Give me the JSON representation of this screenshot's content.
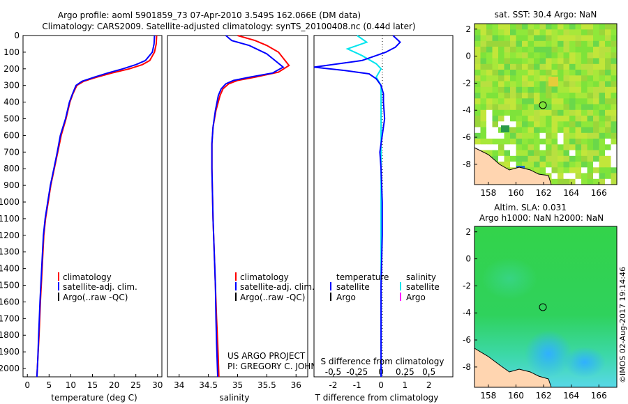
{
  "header": {
    "line1": "Argo profile: aoml 5901859_73 07-Apr-2010 3.549S 162.066E (DM data)",
    "line2": "Climatology: CARS2009. Satellite-adjusted climatology: synTS_20100408.nc (0.44d later)"
  },
  "colors": {
    "climatology": "#ff0000",
    "satellite": "#0000ff",
    "argo": "#000000",
    "sal_satellite": "#00e5ee",
    "sal_argo": "#ff00ff"
  },
  "chart_data": [
    {
      "type": "line",
      "id": "temperature",
      "xlabel": "temperature (deg C)",
      "xlim": [
        -1,
        31
      ],
      "xticks": [
        "0",
        "5",
        "10",
        "15",
        "20",
        "25",
        "30"
      ],
      "ylim": [
        0,
        2050
      ],
      "yticks": [
        "0",
        "100",
        "200",
        "300",
        "400",
        "500",
        "600",
        "700",
        "800",
        "900",
        "1000",
        "1100",
        "1200",
        "1300",
        "1400",
        "1500",
        "1600",
        "1700",
        "1800",
        "1900",
        "2000"
      ],
      "legend": [
        "climatology",
        "satellite-adj. clim.",
        "Argo(..raw -QC)"
      ],
      "series": [
        {
          "name": "climatology",
          "x": [
            29.8,
            29.7,
            29.3,
            28.2,
            26.5,
            23.5,
            19.5,
            16.0,
            13.0,
            11.4,
            10.5,
            9.8,
            8.9,
            7.8,
            7.0,
            6.2,
            5.4,
            4.8,
            4.2,
            3.8,
            3.4,
            3.0,
            2.7,
            2.4,
            2.2
          ],
          "y": [
            0,
            50,
            100,
            150,
            175,
            200,
            225,
            250,
            275,
            300,
            350,
            400,
            500,
            600,
            700,
            800,
            900,
            1000,
            1100,
            1200,
            1400,
            1600,
            1800,
            1950,
            2050
          ]
        },
        {
          "name": "satellite-adj. clim.",
          "x": [
            29.3,
            29.2,
            28.8,
            27.2,
            25.0,
            22.0,
            18.5,
            15.4,
            12.6,
            11.2,
            10.4,
            9.7,
            8.8,
            7.6,
            6.9,
            6.1,
            5.3,
            4.7,
            4.1,
            3.7,
            3.3,
            2.9,
            2.6,
            2.4,
            2.2
          ],
          "y": [
            0,
            50,
            100,
            150,
            175,
            200,
            225,
            250,
            275,
            300,
            350,
            400,
            500,
            600,
            700,
            800,
            900,
            1000,
            1100,
            1200,
            1400,
            1600,
            1800,
            1950,
            2050
          ]
        }
      ]
    },
    {
      "type": "line",
      "id": "salinity",
      "xlabel": "salinity",
      "xlim": [
        33.8,
        36.2
      ],
      "xticks": [
        "34",
        "34.5",
        "35",
        "35.5",
        "36"
      ],
      "ylim": [
        0,
        2050
      ],
      "legend": [
        "climatology",
        "satellite-adj. clim.",
        "Argo(..raw -QC)"
      ],
      "series": [
        {
          "name": "climatology",
          "x": [
            35.0,
            35.3,
            35.5,
            35.7,
            35.88,
            35.7,
            35.3,
            35.0,
            34.85,
            34.75,
            34.7,
            34.63,
            34.58,
            34.56,
            34.56,
            34.57,
            34.58,
            34.6,
            34.62,
            34.64,
            34.66,
            34.67,
            34.68
          ],
          "y": [
            0,
            30,
            60,
            100,
            180,
            220,
            250,
            270,
            290,
            320,
            360,
            450,
            550,
            650,
            800,
            950,
            1100,
            1300,
            1500,
            1700,
            1850,
            1950,
            2050
          ]
        },
        {
          "name": "satellite-adj. clim.",
          "x": [
            34.8,
            34.9,
            35.2,
            35.5,
            35.78,
            35.6,
            35.2,
            34.93,
            34.8,
            34.72,
            34.67,
            34.62,
            34.58,
            34.56,
            34.56,
            34.57,
            34.58,
            34.6,
            34.62,
            34.63,
            34.64,
            34.65,
            34.66
          ],
          "y": [
            0,
            30,
            60,
            110,
            190,
            225,
            250,
            270,
            290,
            320,
            360,
            450,
            550,
            650,
            800,
            950,
            1100,
            1300,
            1500,
            1700,
            1850,
            1950,
            2050
          ]
        }
      ]
    },
    {
      "type": "line",
      "id": "difference",
      "xlabel": "T difference from climatology",
      "xlabel_top": "S difference from climatology",
      "xlim": [
        -2.8,
        3.0
      ],
      "xticks": [
        "-2",
        "-1",
        "0",
        "1",
        "2"
      ],
      "xticks_top": [
        "-0.5",
        "-0.25",
        "0",
        "0.25",
        "0.5"
      ],
      "ylim": [
        0,
        2050
      ],
      "legend_temperature": [
        "temperature",
        "satellite",
        "Argo"
      ],
      "legend_salinity": [
        "salinity",
        "satellite",
        "Argo"
      ],
      "series": [
        {
          "name": "temperature satellite",
          "x": [
            0.5,
            0.8,
            0.6,
            0.2,
            -0.8,
            -2.8,
            -1.5,
            -0.5,
            -0.2,
            0.0,
            0.1,
            0.1,
            0.15,
            0.1,
            0.05,
            -0.05,
            0.0,
            0.05,
            0.05,
            0.0,
            0.0,
            0.0
          ],
          "y": [
            0,
            40,
            70,
            100,
            150,
            190,
            210,
            230,
            260,
            300,
            350,
            400,
            500,
            550,
            600,
            700,
            800,
            1000,
            1200,
            1500,
            1800,
            2050
          ]
        },
        {
          "name": "salinity satellite",
          "x": [
            -1.0,
            -0.6,
            -1.4,
            -0.8,
            -0.2,
            0.0,
            -0.2,
            0.0,
            0.0,
            0.0,
            0.0,
            0.0,
            0.0,
            0.0
          ],
          "y": [
            0,
            40,
            80,
            120,
            170,
            200,
            250,
            300,
            400,
            600,
            900,
            1300,
            1700,
            2050
          ]
        }
      ]
    }
  ],
  "maps": {
    "top_title": "sat. SST: 30.4 Argo: NaN",
    "bottom_title1": "Altim. SLA: 0.031",
    "bottom_title2": "Argo h1000: NaN h2000: NaN",
    "lon_ticks": [
      "158",
      "160",
      "162",
      "164",
      "166"
    ],
    "lat_ticks": [
      "2",
      "0",
      "-2",
      "-4",
      "-6",
      "-8"
    ],
    "lon_range": [
      157,
      167.3
    ],
    "lat_range": [
      -9.5,
      2.4
    ],
    "profile_location": {
      "lon": 162.066,
      "lat": -3.549
    }
  },
  "credits": {
    "project": "US ARGO PROJECT",
    "pi": "PI: GREGORY C. JOHNSON",
    "stamp": "©IMOS 02-Aug-2017 19:14:46"
  }
}
